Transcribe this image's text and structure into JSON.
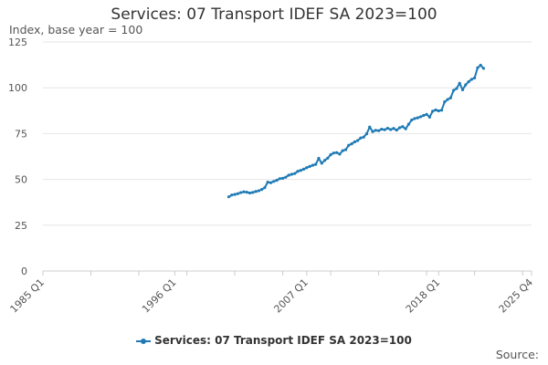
{
  "chart_data": {
    "type": "line",
    "title": "Services: 07 Transport IDEF SA 2023=100",
    "ylabel": "Index, base year = 100",
    "xlabel": "",
    "ylim": [
      0,
      125
    ],
    "yticks": [
      "0",
      "25",
      "50",
      "75",
      "100",
      "125"
    ],
    "xticks": [
      "1985 Q1",
      "1996 Q1",
      "2007 Q1",
      "2018 Q1",
      "2025 Q4"
    ],
    "xtick_quarters": [
      0,
      44,
      88,
      132,
      163
    ],
    "x_range_quarters": [
      0,
      163
    ],
    "grid": true,
    "legend_position": "bottom",
    "series": [
      {
        "name": "Services: 07 Transport IDEF SA 2023=100",
        "color": "#1f7ab5",
        "points": [
          [
            62,
            40.5
          ],
          [
            63,
            41.5
          ],
          [
            64,
            41.8
          ],
          [
            65,
            42.2
          ],
          [
            66,
            42.8
          ],
          [
            67,
            43.2
          ],
          [
            68,
            43.0
          ],
          [
            69,
            42.6
          ],
          [
            70,
            42.9
          ],
          [
            71,
            43.4
          ],
          [
            72,
            43.8
          ],
          [
            73,
            44.5
          ],
          [
            74,
            45.5
          ],
          [
            75,
            48.5
          ],
          [
            76,
            48.2
          ],
          [
            77,
            48.9
          ],
          [
            78,
            49.5
          ],
          [
            79,
            50.4
          ],
          [
            80,
            50.6
          ],
          [
            81,
            51.2
          ],
          [
            82,
            52.3
          ],
          [
            83,
            52.8
          ],
          [
            84,
            53.2
          ],
          [
            85,
            54.4
          ],
          [
            86,
            54.9
          ],
          [
            87,
            55.6
          ],
          [
            88,
            56.4
          ],
          [
            89,
            57.1
          ],
          [
            90,
            57.7
          ],
          [
            91,
            58.2
          ],
          [
            92,
            61.5
          ],
          [
            93,
            58.8
          ],
          [
            94,
            60.4
          ],
          [
            95,
            61.6
          ],
          [
            96,
            63.5
          ],
          [
            97,
            64.4
          ],
          [
            98,
            64.6
          ],
          [
            99,
            63.8
          ],
          [
            100,
            65.7
          ],
          [
            101,
            66.2
          ],
          [
            102,
            68.6
          ],
          [
            103,
            69.4
          ],
          [
            104,
            70.5
          ],
          [
            105,
            71.2
          ],
          [
            106,
            72.6
          ],
          [
            107,
            73.1
          ],
          [
            108,
            74.9
          ],
          [
            109,
            78.6
          ],
          [
            110,
            76.1
          ],
          [
            111,
            76.8
          ],
          [
            112,
            76.6
          ],
          [
            113,
            77.4
          ],
          [
            114,
            77.1
          ],
          [
            115,
            77.9
          ],
          [
            116,
            77.2
          ],
          [
            117,
            77.8
          ],
          [
            118,
            76.9
          ],
          [
            119,
            78.2
          ],
          [
            120,
            78.8
          ],
          [
            121,
            77.6
          ],
          [
            122,
            80.1
          ],
          [
            123,
            82.4
          ],
          [
            124,
            83.2
          ],
          [
            125,
            83.6
          ],
          [
            126,
            84.2
          ],
          [
            127,
            84.9
          ],
          [
            128,
            85.5
          ],
          [
            129,
            84.0
          ],
          [
            130,
            87.2
          ],
          [
            131,
            87.9
          ],
          [
            132,
            87.4
          ],
          [
            133,
            87.8
          ],
          [
            134,
            92.3
          ],
          [
            135,
            93.6
          ],
          [
            136,
            94.5
          ],
          [
            137,
            98.6
          ],
          [
            138,
            99.6
          ],
          [
            139,
            102.5
          ],
          [
            140,
            98.9
          ],
          [
            141,
            101.6
          ],
          [
            142,
            103.3
          ],
          [
            143,
            104.6
          ],
          [
            144,
            105.4
          ],
          [
            145,
            110.9
          ],
          [
            146,
            112.3
          ],
          [
            147,
            110.6
          ]
        ]
      }
    ]
  },
  "footer": {
    "source_label": "Source:"
  }
}
